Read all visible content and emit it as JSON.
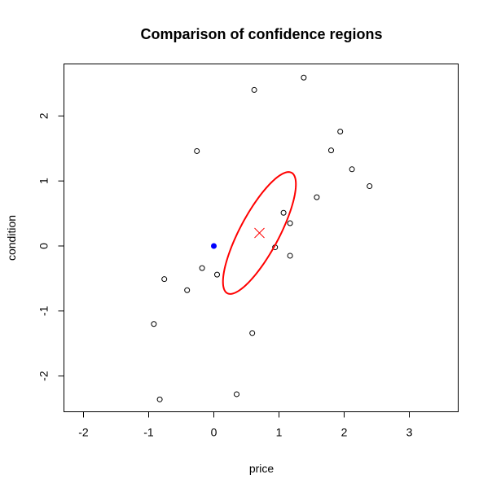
{
  "chart_data": {
    "type": "scatter",
    "title": "Comparison of confidence regions",
    "xlabel": "price",
    "ylabel": "condition",
    "xlim": [
      -2.3,
      3.75
    ],
    "ylim": [
      -2.55,
      2.8
    ],
    "xticks": [
      -2,
      -1,
      0,
      1,
      2,
      3
    ],
    "yticks": [
      -2,
      -1,
      0,
      1,
      2
    ],
    "grid": false,
    "legend": "none",
    "colors": {
      "points": "#000000",
      "highlight_point": "#0000ff",
      "ellipse": "#ff0000",
      "center": "#ff0000"
    },
    "points": [
      {
        "x": 0.62,
        "y": 2.4
      },
      {
        "x": 1.38,
        "y": 2.59
      },
      {
        "x": 1.94,
        "y": 1.76
      },
      {
        "x": 1.8,
        "y": 1.47
      },
      {
        "x": -0.26,
        "y": 1.46
      },
      {
        "x": 2.12,
        "y": 1.18
      },
      {
        "x": 2.39,
        "y": 0.92
      },
      {
        "x": 1.58,
        "y": 0.75
      },
      {
        "x": 1.07,
        "y": 0.51
      },
      {
        "x": 1.17,
        "y": 0.35
      },
      {
        "x": 0.94,
        "y": -0.02
      },
      {
        "x": 1.17,
        "y": -0.15
      },
      {
        "x": -0.18,
        "y": -0.34
      },
      {
        "x": 0.05,
        "y": -0.44
      },
      {
        "x": -0.76,
        "y": -0.51
      },
      {
        "x": -0.41,
        "y": -0.68
      },
      {
        "x": -0.92,
        "y": -1.2
      },
      {
        "x": 0.59,
        "y": -1.34
      },
      {
        "x": 0.35,
        "y": -2.28
      },
      {
        "x": -0.83,
        "y": -2.36
      }
    ],
    "highlight_point": {
      "x": 0.0,
      "y": 0.0
    },
    "center": {
      "x": 0.7,
      "y": 0.2
    },
    "ellipse": {
      "cx": 0.7,
      "cy": 0.2,
      "semi_major": 1.05,
      "semi_minor": 0.3,
      "angle_deg": 62
    }
  }
}
